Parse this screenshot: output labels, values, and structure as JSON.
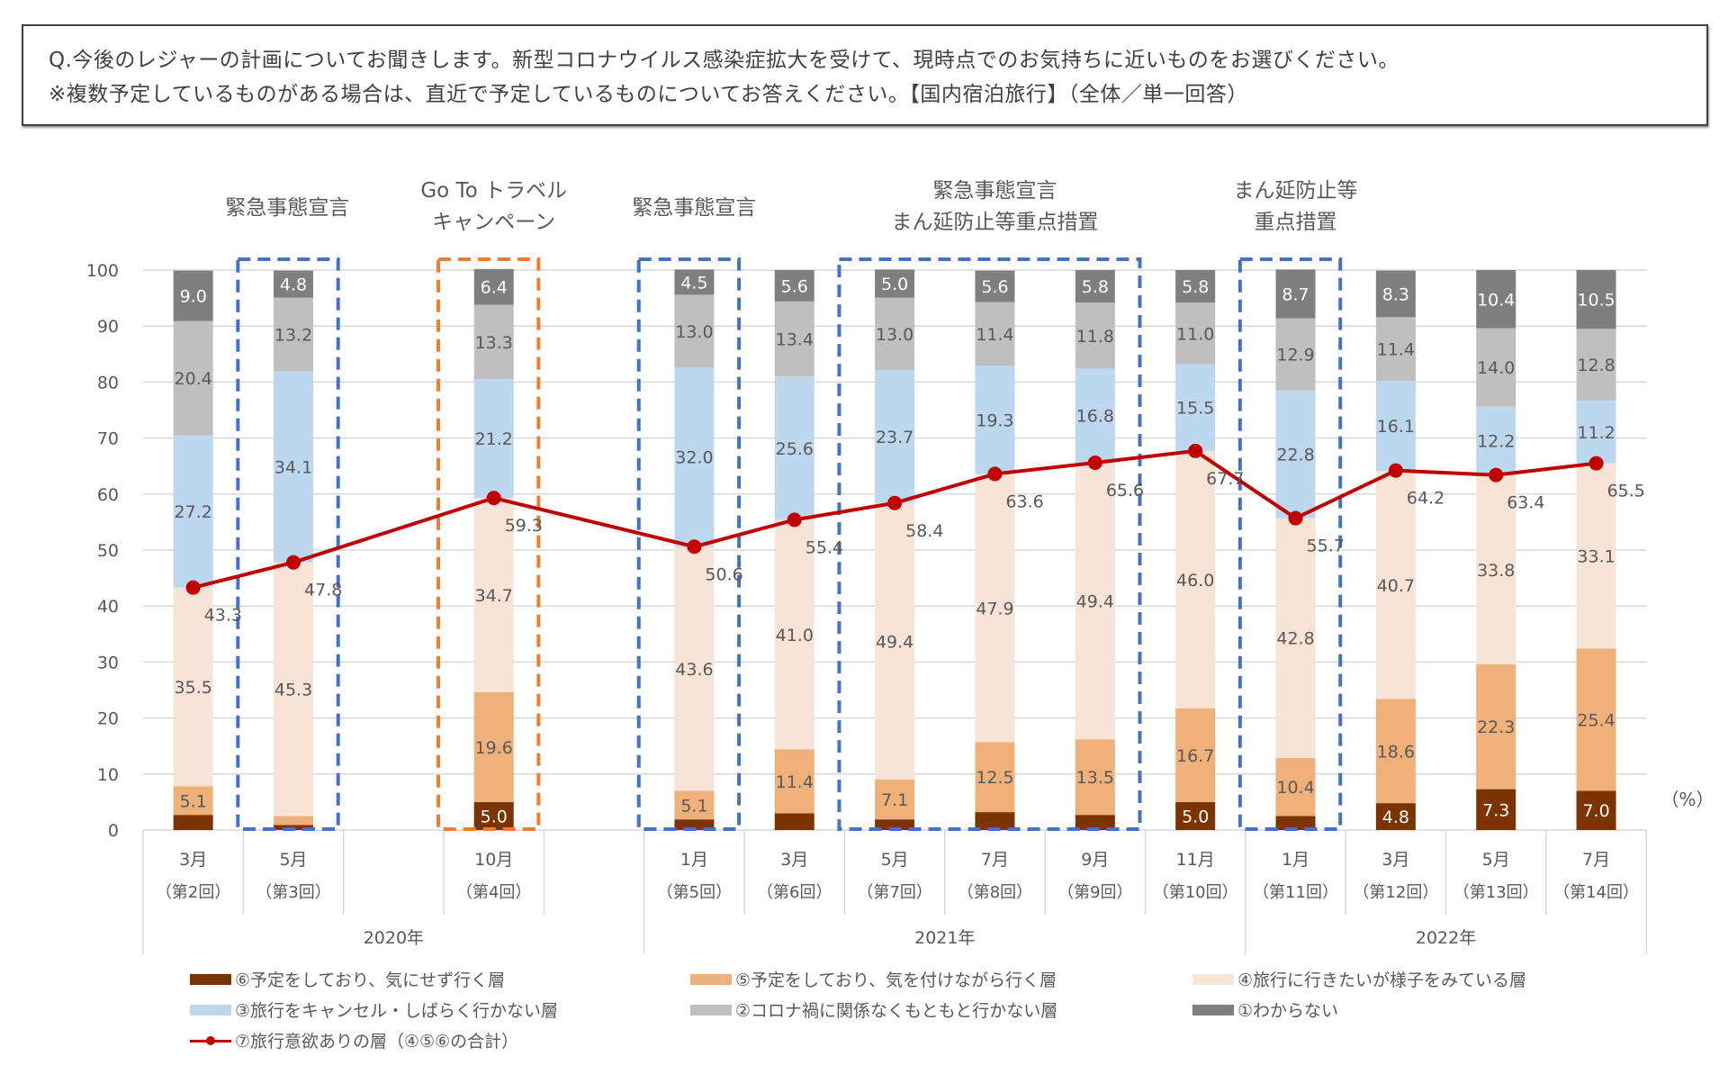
{
  "question": {
    "line1": "Q.今後のレジャーの計画についてお聞きします。新型コロナウイルス感染症拡大を受けて、現時点でのお気持ちに近いものをお選びください。",
    "line2": "※複数予定しているものがある場合は、直近で予定しているものについてお答えください。【国内宿泊旅行】（全体／単一回答）"
  },
  "chart_data": {
    "type": "bar",
    "stacked": true,
    "unit": "（%）",
    "ylim": [
      0,
      100
    ],
    "yticks": [
      0,
      10,
      20,
      30,
      40,
      50,
      60,
      70,
      80,
      90,
      100
    ],
    "grid": true,
    "legend_placement": "bottom",
    "categories": [
      {
        "month": "3月",
        "round": "（第2回）",
        "year": "2020年"
      },
      {
        "month": "5月",
        "round": "（第3回）",
        "year": "2020年"
      },
      {
        "month": "10月",
        "round": "（第4回）",
        "year": "2020年"
      },
      {
        "month": "1月",
        "round": "（第5回）",
        "year": "2021年"
      },
      {
        "month": "3月",
        "round": "（第6回）",
        "year": "2021年"
      },
      {
        "month": "5月",
        "round": "（第7回）",
        "year": "2021年"
      },
      {
        "month": "7月",
        "round": "（第8回）",
        "year": "2021年"
      },
      {
        "month": "9月",
        "round": "（第9回）",
        "year": "2021年"
      },
      {
        "month": "11月",
        "round": "（第10回）",
        "year": "2021年"
      },
      {
        "month": "1月",
        "round": "（第11回）",
        "year": "2022年"
      },
      {
        "month": "3月",
        "round": "（第12回）",
        "year": "2022年"
      },
      {
        "month": "5月",
        "round": "（第13回）",
        "year": "2022年"
      },
      {
        "month": "7月",
        "round": "（第14回）",
        "year": "2022年"
      }
    ],
    "years": [
      "2020年",
      "2021年",
      "2022年"
    ],
    "series": [
      {
        "name": "⑥予定をしており、気にせず行く層",
        "color": "#7B3300",
        "values": [
          2.7,
          0.9,
          5.0,
          1.9,
          3.0,
          1.9,
          3.2,
          2.7,
          5.0,
          2.5,
          4.8,
          7.3,
          7.0
        ]
      },
      {
        "name": "⑤予定をしており、気を付けながら行く層",
        "color": "#F0B07A",
        "values": [
          5.1,
          1.6,
          19.6,
          5.1,
          11.4,
          7.1,
          12.5,
          13.5,
          16.7,
          10.4,
          18.6,
          22.3,
          25.4
        ]
      },
      {
        "name": "④旅行に行きたいが様子をみている層",
        "color": "#F8E4D6",
        "values": [
          35.5,
          45.3,
          34.7,
          43.6,
          41.0,
          49.4,
          47.9,
          49.4,
          46.0,
          42.8,
          40.7,
          33.8,
          33.1
        ]
      },
      {
        "name": "③旅行をキャンセル・しばらく行かない層",
        "color": "#BDD7EE",
        "values": [
          27.2,
          34.1,
          21.2,
          32.0,
          25.6,
          23.7,
          19.3,
          16.8,
          15.5,
          22.8,
          16.1,
          12.2,
          11.2
        ]
      },
      {
        "name": "②コロナ禍に関係なくもともと行かない層",
        "color": "#BFBFBF",
        "values": [
          20.4,
          13.2,
          13.3,
          13.0,
          13.4,
          13.0,
          11.4,
          11.8,
          11.0,
          12.9,
          11.4,
          14.0,
          12.8
        ]
      },
      {
        "name": "①わからない",
        "color": "#7F7F7F",
        "values": [
          9.0,
          4.8,
          6.4,
          4.5,
          5.6,
          5.0,
          5.6,
          5.8,
          5.8,
          8.7,
          8.3,
          10.4,
          10.5
        ]
      }
    ],
    "line": {
      "name": "⑦旅行意欲ありの層（④⑤⑥の合計）",
      "color": "#C00000",
      "values": [
        43.3,
        47.8,
        59.3,
        50.6,
        55.4,
        58.4,
        63.6,
        65.6,
        67.7,
        55.7,
        64.2,
        63.4,
        65.5
      ]
    },
    "annotations": [
      {
        "text": [
          "緊急事態宣言"
        ],
        "highlight": [
          1
        ],
        "color": "#4472C4"
      },
      {
        "text": [
          "Go To トラベル",
          "キャンペーン"
        ],
        "highlight": [
          2
        ],
        "color": "#ED7D31"
      },
      {
        "text": [
          "緊急事態宣言"
        ],
        "highlight": [
          3
        ],
        "color": "#4472C4"
      },
      {
        "text": [
          "緊急事態宣言",
          "まん延防止等重点措置"
        ],
        "highlight": [
          5,
          6,
          7
        ],
        "color": "#4472C4"
      },
      {
        "text": [
          "まん延防止等",
          "重点措置"
        ],
        "highlight": [
          9
        ],
        "color": "#4472C4"
      }
    ]
  }
}
